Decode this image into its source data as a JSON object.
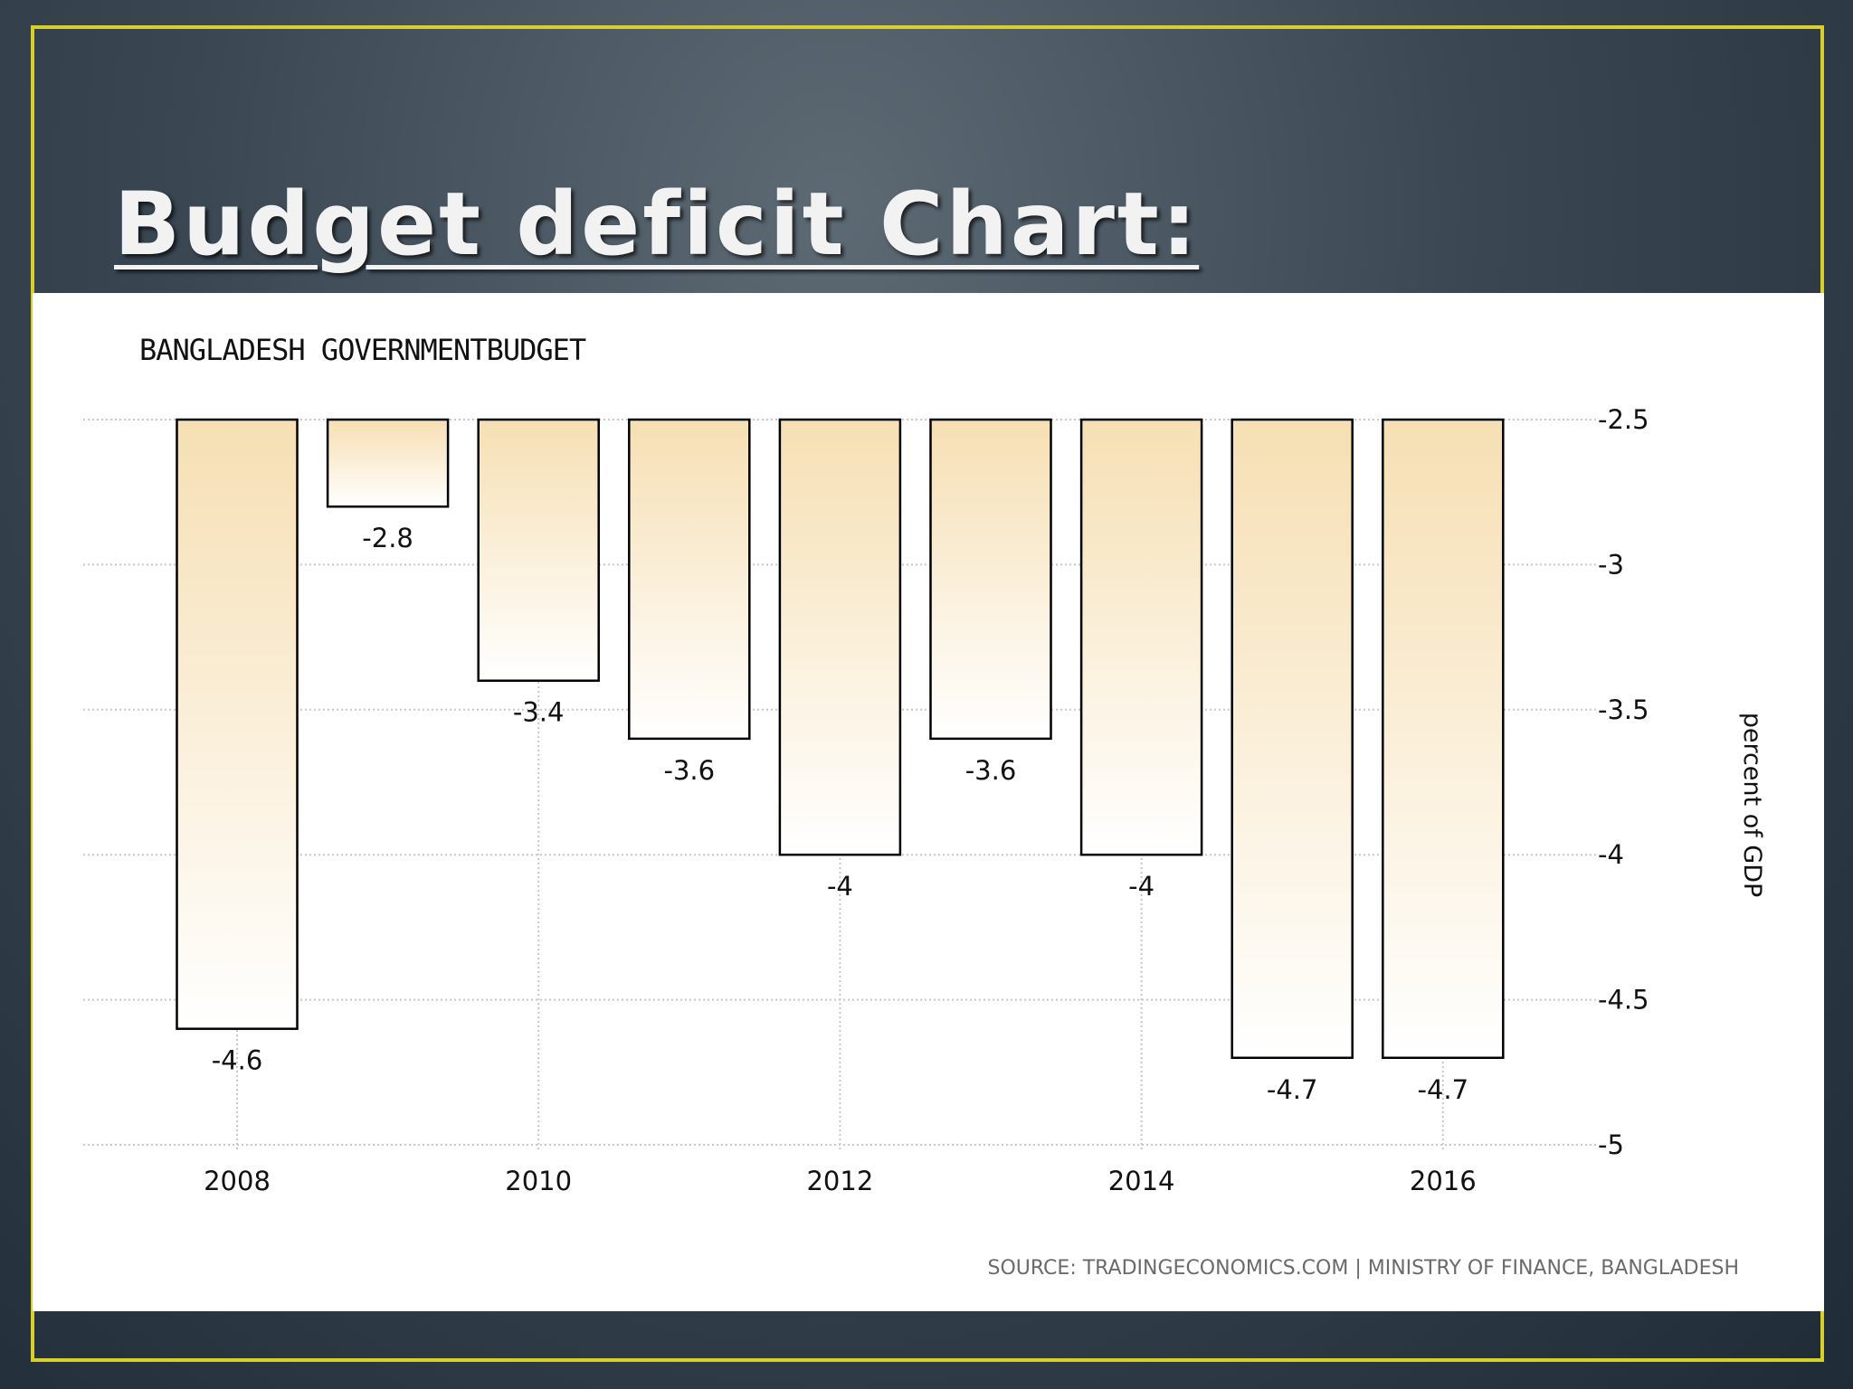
{
  "slide": {
    "title": "Budget deficit Chart:"
  },
  "chart": {
    "heading": "BANGLADESH GOVERNMENTBUDGET",
    "source": "SOURCE: TRADINGECONOMICS.COM | MINISTRY OF FINANCE, BANGLADESH"
  },
  "colors": {
    "bar_top": "#f6dfb3",
    "bar_bottom": "#ffffff",
    "frame": "#d9cf2a",
    "grid": "#c8c8c8"
  },
  "chart_data": {
    "type": "bar",
    "title": "BANGLADESH GOVERNMENTBUDGET",
    "xlabel": "",
    "ylabel": "percent of GDP",
    "categories": [
      "2008",
      "2009",
      "2010",
      "2011",
      "2012",
      "2013",
      "2014",
      "2015",
      "2016"
    ],
    "values": [
      -4.6,
      -2.8,
      -3.4,
      -3.6,
      -4,
      -3.6,
      -4,
      -4.7,
      -4.7
    ],
    "data_labels": [
      "-4.6",
      "-2.8",
      "-3.4",
      "-3.6",
      "-4",
      "-3.6",
      "-4",
      "-4.7",
      "-4.7"
    ],
    "x_tick_labels": [
      "2008",
      "2010",
      "2012",
      "2014",
      "2016"
    ],
    "y_tick_labels": [
      "-2.5",
      "-3",
      "-3.5",
      "-4",
      "-4.5",
      "-5"
    ],
    "y_ticks": [
      -2.5,
      -3,
      -3.5,
      -4,
      -4.5,
      -5
    ],
    "ylim": [
      -5,
      -2.5
    ],
    "y_axis_position": "right",
    "grid": true,
    "legend": "none"
  }
}
